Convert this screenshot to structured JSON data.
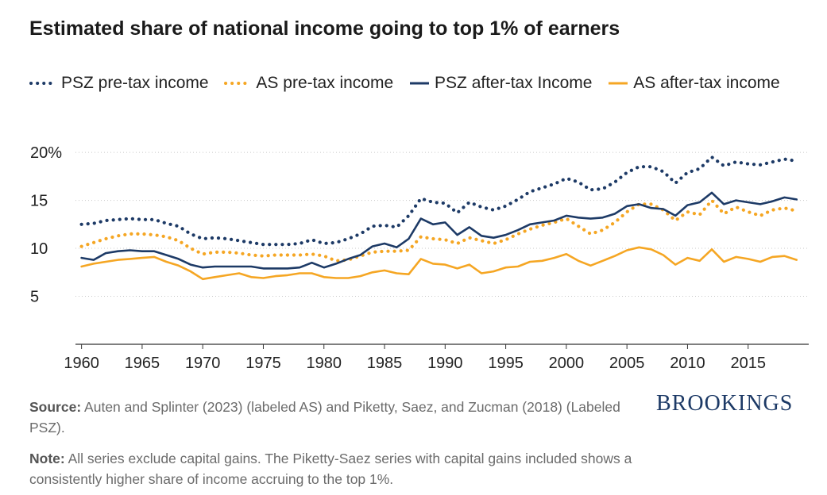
{
  "title": "Estimated share of national income going to top 1% of earners",
  "brand": "BROOKINGS",
  "source": {
    "label": "Source:",
    "text": " Auten and Splinter (2023) (labeled AS) and Piketty, Saez, and Zucman (2018) (Labeled PSZ)."
  },
  "note": {
    "label": "Note:",
    "text": " All series exclude capital gains. The Piketty-Saez series with capital gains included shows a consistently higher share of income accruing to the top 1%."
  },
  "chart_data": {
    "type": "line",
    "title": "Estimated share of national income going to top 1% of earners",
    "xlabel": "",
    "ylabel": "",
    "xlim": [
      1959.5,
      2020
    ],
    "ylim": [
      0,
      21
    ],
    "yticks": [
      5,
      10,
      15,
      20
    ],
    "ytick_labels": [
      "5",
      "10",
      "15",
      "20%"
    ],
    "xticks": [
      1960,
      1965,
      1970,
      1975,
      1980,
      1985,
      1990,
      1995,
      2000,
      2005,
      2010,
      2015
    ],
    "xtick_labels": [
      "1960",
      "1965",
      "1970",
      "1975",
      "1980",
      "1985",
      "1990",
      "1995",
      "2000",
      "2005",
      "2010",
      "2015"
    ],
    "grid": "horizontal dotted",
    "legend": "top",
    "x": [
      1960,
      1961,
      1962,
      1963,
      1964,
      1965,
      1966,
      1967,
      1968,
      1969,
      1970,
      1971,
      1972,
      1973,
      1974,
      1975,
      1976,
      1977,
      1978,
      1979,
      1980,
      1981,
      1982,
      1983,
      1984,
      1985,
      1986,
      1987,
      1988,
      1989,
      1990,
      1991,
      1992,
      1993,
      1994,
      1995,
      1996,
      1997,
      1998,
      1999,
      2000,
      2001,
      2002,
      2003,
      2004,
      2005,
      2006,
      2007,
      2008,
      2009,
      2010,
      2011,
      2012,
      2013,
      2014,
      2015,
      2016,
      2017,
      2018,
      2019
    ],
    "series": [
      {
        "name": "PSZ pre-tax income",
        "color": "#1d3a66",
        "style": "dotted",
        "values": [
          12.5,
          12.6,
          12.9,
          13.0,
          13.1,
          13.0,
          13.0,
          12.6,
          12.3,
          11.5,
          11.0,
          11.1,
          11.0,
          10.8,
          10.6,
          10.4,
          10.4,
          10.4,
          10.5,
          10.9,
          10.5,
          10.6,
          11.0,
          11.5,
          12.3,
          12.4,
          12.2,
          13.4,
          15.2,
          14.8,
          14.7,
          13.7,
          14.8,
          14.3,
          14.0,
          14.4,
          15.1,
          15.9,
          16.3,
          16.7,
          17.3,
          16.9,
          16.1,
          16.2,
          16.9,
          17.9,
          18.5,
          18.5,
          18.0,
          16.8,
          17.9,
          18.3,
          19.5,
          18.6,
          19.0,
          18.8,
          18.7,
          19.0,
          19.3,
          19.1
        ]
      },
      {
        "name": "AS pre-tax income",
        "color": "#f5a623",
        "style": "dotted",
        "values": [
          10.2,
          10.6,
          11.0,
          11.3,
          11.5,
          11.5,
          11.4,
          11.2,
          10.8,
          10.0,
          9.4,
          9.6,
          9.6,
          9.5,
          9.3,
          9.2,
          9.3,
          9.3,
          9.3,
          9.4,
          9.2,
          8.7,
          8.8,
          9.2,
          9.6,
          9.7,
          9.7,
          9.8,
          11.2,
          11.0,
          10.9,
          10.5,
          11.1,
          10.8,
          10.5,
          10.9,
          11.5,
          12.0,
          12.4,
          12.7,
          13.1,
          12.3,
          11.5,
          11.9,
          12.7,
          13.8,
          14.6,
          14.6,
          14.0,
          12.9,
          13.8,
          13.5,
          15.0,
          13.6,
          14.3,
          13.8,
          13.4,
          14.0,
          14.2,
          13.9
        ]
      },
      {
        "name": "PSZ after-tax Income",
        "color": "#1d3a66",
        "style": "solid",
        "values": [
          9.0,
          8.8,
          9.5,
          9.7,
          9.8,
          9.7,
          9.7,
          9.3,
          8.9,
          8.3,
          8.0,
          8.1,
          8.1,
          8.1,
          8.1,
          7.9,
          7.9,
          7.9,
          8.0,
          8.5,
          8.0,
          8.4,
          8.9,
          9.3,
          10.2,
          10.5,
          10.1,
          11.0,
          13.1,
          12.5,
          12.7,
          11.4,
          12.2,
          11.3,
          11.1,
          11.4,
          11.9,
          12.5,
          12.7,
          12.9,
          13.4,
          13.2,
          13.1,
          13.2,
          13.6,
          14.4,
          14.6,
          14.2,
          14.1,
          13.4,
          14.5,
          14.8,
          15.8,
          14.6,
          15.0,
          14.8,
          14.6,
          14.9,
          15.3,
          15.1
        ]
      },
      {
        "name": "AS after-tax income",
        "color": "#f5a623",
        "style": "solid",
        "values": [
          8.1,
          8.4,
          8.6,
          8.8,
          8.9,
          9.0,
          9.1,
          8.6,
          8.2,
          7.6,
          6.8,
          7.0,
          7.2,
          7.4,
          7.0,
          6.9,
          7.1,
          7.2,
          7.4,
          7.4,
          7.0,
          6.9,
          6.9,
          7.1,
          7.5,
          7.7,
          7.4,
          7.3,
          8.9,
          8.4,
          8.3,
          7.9,
          8.3,
          7.4,
          7.6,
          8.0,
          8.1,
          8.6,
          8.7,
          9.0,
          9.4,
          8.7,
          8.2,
          8.7,
          9.2,
          9.8,
          10.1,
          9.9,
          9.3,
          8.3,
          9.0,
          8.7,
          9.9,
          8.6,
          9.1,
          8.9,
          8.6,
          9.1,
          9.2,
          8.8
        ]
      }
    ]
  }
}
